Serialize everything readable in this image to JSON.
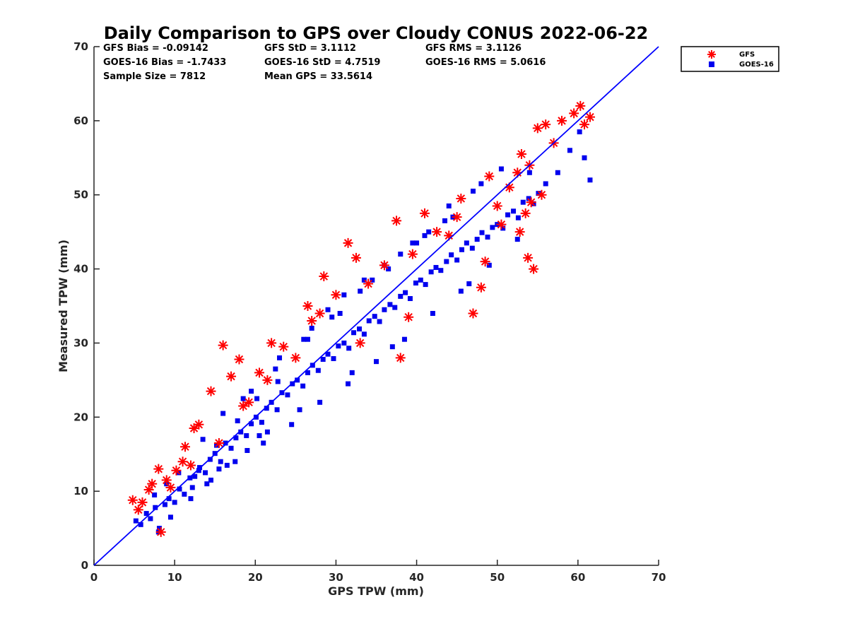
{
  "chart_data": {
    "type": "scatter",
    "title": "Daily Comparison to GPS over Cloudy CONUS 2022-06-22",
    "xlabel": "GPS TPW (mm)",
    "ylabel": "Measured TPW (mm)",
    "xlim": [
      0,
      70
    ],
    "ylim": [
      0,
      70
    ],
    "xticks": [
      "0",
      "10",
      "20",
      "30",
      "40",
      "50",
      "60",
      "70"
    ],
    "yticks": [
      "0",
      "10",
      "20",
      "30",
      "40",
      "50",
      "60",
      "70"
    ],
    "grid": false,
    "legend_position": "outside-top-right",
    "one_to_one_line": {
      "x": [
        0,
        70
      ],
      "y": [
        0,
        70
      ],
      "color": "#0000ff"
    },
    "stats": [
      [
        "GFS Bias = -0.09142",
        "GFS StD = 3.1112",
        "GFS RMS = 3.1126"
      ],
      [
        "GOES-16 Bias = -1.7433",
        "GOES-16 StD = 4.7519",
        "GOES-16 RMS = 5.0616"
      ],
      [
        "Sample Size = 7812",
        "Mean GPS = 33.5614",
        ""
      ]
    ],
    "series": [
      {
        "name": "GOES-16",
        "marker": "square",
        "color": "#0000ee",
        "x": [
          5.2,
          5.8,
          6.5,
          7.0,
          7.6,
          8.1,
          8.8,
          9.3,
          10.0,
          10.6,
          11.2,
          11.9,
          12.5,
          13.1,
          13.8,
          14.4,
          15.0,
          15.7,
          16.3,
          17.0,
          17.6,
          18.2,
          18.9,
          19.5,
          20.1,
          20.8,
          21.4,
          22.0,
          22.7,
          23.3,
          24.0,
          24.6,
          25.2,
          25.9,
          26.5,
          27.1,
          27.8,
          28.4,
          29.0,
          29.7,
          30.3,
          31.0,
          31.6,
          32.2,
          32.9,
          33.5,
          34.1,
          34.8,
          35.4,
          36.0,
          36.7,
          37.3,
          38.0,
          38.6,
          39.2,
          39.9,
          40.5,
          41.1,
          41.8,
          42.4,
          43.0,
          43.7,
          44.3,
          45.0,
          45.6,
          46.2,
          46.9,
          47.5,
          48.1,
          48.8,
          49.4,
          50.0,
          50.7,
          51.3,
          52.0,
          52.6,
          53.2,
          53.9,
          54.5,
          55.1,
          56.0,
          57.5,
          59.0,
          60.2,
          60.8,
          61.5,
          8.0,
          9.5,
          12.0,
          14.5,
          17.5,
          21.0,
          24.5,
          28.0,
          31.5,
          35.0,
          38.5,
          42.0,
          45.5,
          49.0,
          18.5,
          22.5,
          26.5,
          30.5,
          34.5,
          38.0,
          41.5,
          44.0,
          47.0,
          50.5,
          13.5,
          16.0,
          19.5,
          23.0,
          26.0,
          29.5,
          33.0,
          36.5,
          40.0,
          43.5,
          7.5,
          9.0,
          10.5,
          15.5,
          20.5,
          25.5,
          32.0,
          37.0,
          46.5,
          52.5,
          27.0,
          29.0,
          31.0,
          33.5,
          36.0,
          39.5,
          41.0,
          44.5,
          48.0,
          54.0,
          12.2,
          13.0,
          14.0,
          15.2,
          16.5,
          17.8,
          19.0,
          20.2,
          21.5,
          22.8
        ],
        "y": [
          6.0,
          5.5,
          7.0,
          6.3,
          7.8,
          5.0,
          8.2,
          9.0,
          8.5,
          10.3,
          9.6,
          11.8,
          12.0,
          13.2,
          12.5,
          14.3,
          15.1,
          14.0,
          16.5,
          15.8,
          17.2,
          18.0,
          17.5,
          19.1,
          20.0,
          19.3,
          21.2,
          22.0,
          21.0,
          23.3,
          23.0,
          24.5,
          25.0,
          24.2,
          26.0,
          27.0,
          26.3,
          27.8,
          28.5,
          27.9,
          29.6,
          30.0,
          29.3,
          31.4,
          31.9,
          31.2,
          33.0,
          33.6,
          32.9,
          34.5,
          35.2,
          34.8,
          36.3,
          36.8,
          36.0,
          38.1,
          38.5,
          37.9,
          39.6,
          40.2,
          39.8,
          41.0,
          41.9,
          41.2,
          42.6,
          43.5,
          42.8,
          44.0,
          44.9,
          44.3,
          45.6,
          46.0,
          45.5,
          47.3,
          47.8,
          46.9,
          49.0,
          49.5,
          48.8,
          50.2,
          51.5,
          53.0,
          56.0,
          58.5,
          55.0,
          52.0,
          4.5,
          6.5,
          9.0,
          11.5,
          14.0,
          16.5,
          19.0,
          22.0,
          24.5,
          27.5,
          30.5,
          34.0,
          37.0,
          40.5,
          22.5,
          26.5,
          30.5,
          34.0,
          38.5,
          42.0,
          45.0,
          48.5,
          50.5,
          53.5,
          17.0,
          20.5,
          23.5,
          28.0,
          30.5,
          33.5,
          37.0,
          40.0,
          43.5,
          46.5,
          9.5,
          11.0,
          12.5,
          13.0,
          17.5,
          21.0,
          26.0,
          29.5,
          38.0,
          44.0,
          32.0,
          34.5,
          36.5,
          38.5,
          40.5,
          43.5,
          44.5,
          47.0,
          51.5,
          53.0,
          10.5,
          12.8,
          11.0,
          16.2,
          13.5,
          19.5,
          15.5,
          22.5,
          18.0,
          24.8
        ]
      },
      {
        "name": "GFS",
        "marker": "asterisk",
        "color": "#ff0000",
        "x": [
          4.8,
          5.5,
          6.0,
          6.8,
          7.2,
          8.0,
          8.3,
          9.0,
          10.2,
          11.0,
          11.3,
          12.4,
          13.0,
          14.5,
          16.0,
          17.0,
          18.0,
          19.2,
          20.5,
          22.0,
          23.5,
          25.0,
          26.5,
          28.0,
          28.5,
          30.0,
          31.5,
          32.5,
          34.0,
          36.0,
          37.5,
          38.0,
          39.5,
          41.0,
          42.5,
          44.0,
          45.5,
          47.0,
          48.0,
          49.0,
          50.0,
          51.5,
          52.5,
          53.0,
          53.5,
          54.0,
          54.5,
          55.0,
          56.0,
          57.0,
          58.0,
          59.5,
          60.3,
          60.8,
          61.5,
          52.8,
          53.8,
          54.2,
          55.5,
          50.5,
          48.5,
          45.0,
          39.0,
          33.0,
          27.0,
          21.5,
          18.5,
          15.5,
          12.0,
          9.5
        ],
        "y": [
          8.8,
          7.5,
          8.5,
          10.2,
          11.0,
          13.0,
          4.5,
          11.5,
          12.8,
          14.0,
          16.0,
          18.5,
          19.0,
          23.5,
          29.7,
          25.5,
          27.8,
          22.0,
          26.0,
          30.0,
          29.5,
          28.0,
          35.0,
          34.0,
          39.0,
          36.5,
          43.5,
          41.5,
          38.0,
          40.5,
          46.5,
          28.0,
          42.0,
          47.5,
          45.0,
          44.5,
          49.5,
          34.0,
          37.5,
          52.5,
          48.5,
          51.0,
          53.0,
          55.5,
          47.5,
          54.0,
          40.0,
          59.0,
          59.5,
          57.0,
          60.0,
          61.0,
          62.0,
          59.5,
          60.5,
          45.0,
          41.5,
          49.0,
          50.0,
          46.0,
          41.0,
          47.0,
          33.5,
          30.0,
          33.0,
          25.0,
          21.5,
          16.5,
          13.5,
          10.5
        ]
      }
    ]
  }
}
